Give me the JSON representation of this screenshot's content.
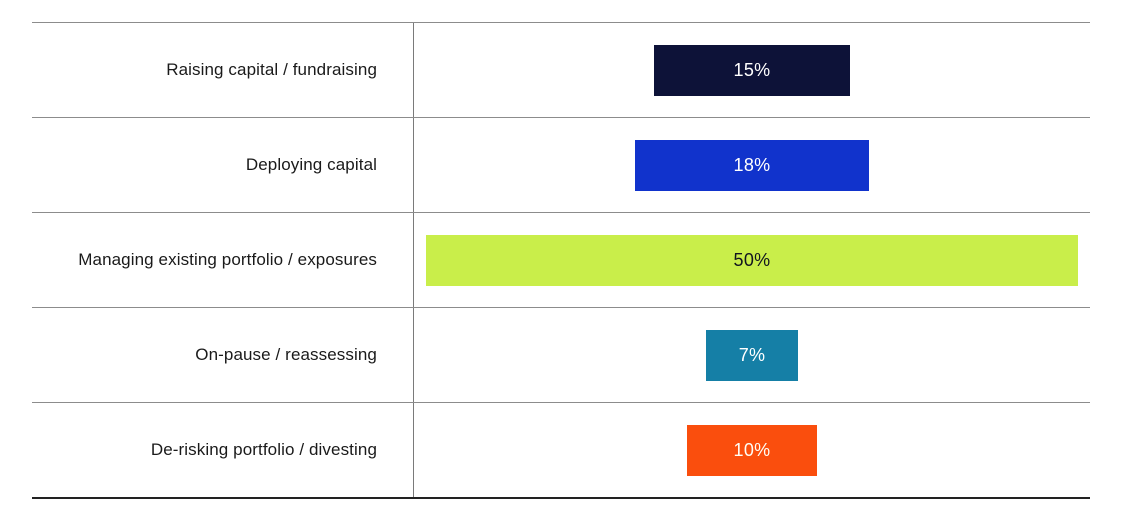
{
  "chart_data": {
    "type": "bar",
    "orientation": "horizontal",
    "title": "",
    "xlabel": "",
    "ylabel": "",
    "categories": [
      "Raising capital / fundraising",
      "Deploying capital",
      "Managing existing portfolio / exposures",
      "On-pause / reassessing",
      "De-risking portfolio / divesting"
    ],
    "values": [
      15,
      18,
      50,
      7,
      10
    ],
    "value_labels": [
      "15%",
      "18%",
      "50%",
      "7%",
      "10%"
    ],
    "bar_colors": [
      "#0d1238",
      "#1133cc",
      "#c9ee4a",
      "#157fa6",
      "#fa4e0d"
    ],
    "value_text_colors": [
      "#ffffff",
      "#ffffff",
      "#11151f",
      "#ffffff",
      "#fffdf6"
    ],
    "xlim": [
      0,
      51.8
    ],
    "grid": "horizontal row separators only, no axis ticks",
    "legend": "none",
    "bar_alignment": "centered in chart column, value label inside bar"
  },
  "palette": {
    "separator_gray": "#8c8c8c",
    "divider_gray": "#7a7a7a",
    "bottom_rule_dark": "#222222",
    "label_text": "#1a1a1a",
    "background": "#ffffff"
  }
}
